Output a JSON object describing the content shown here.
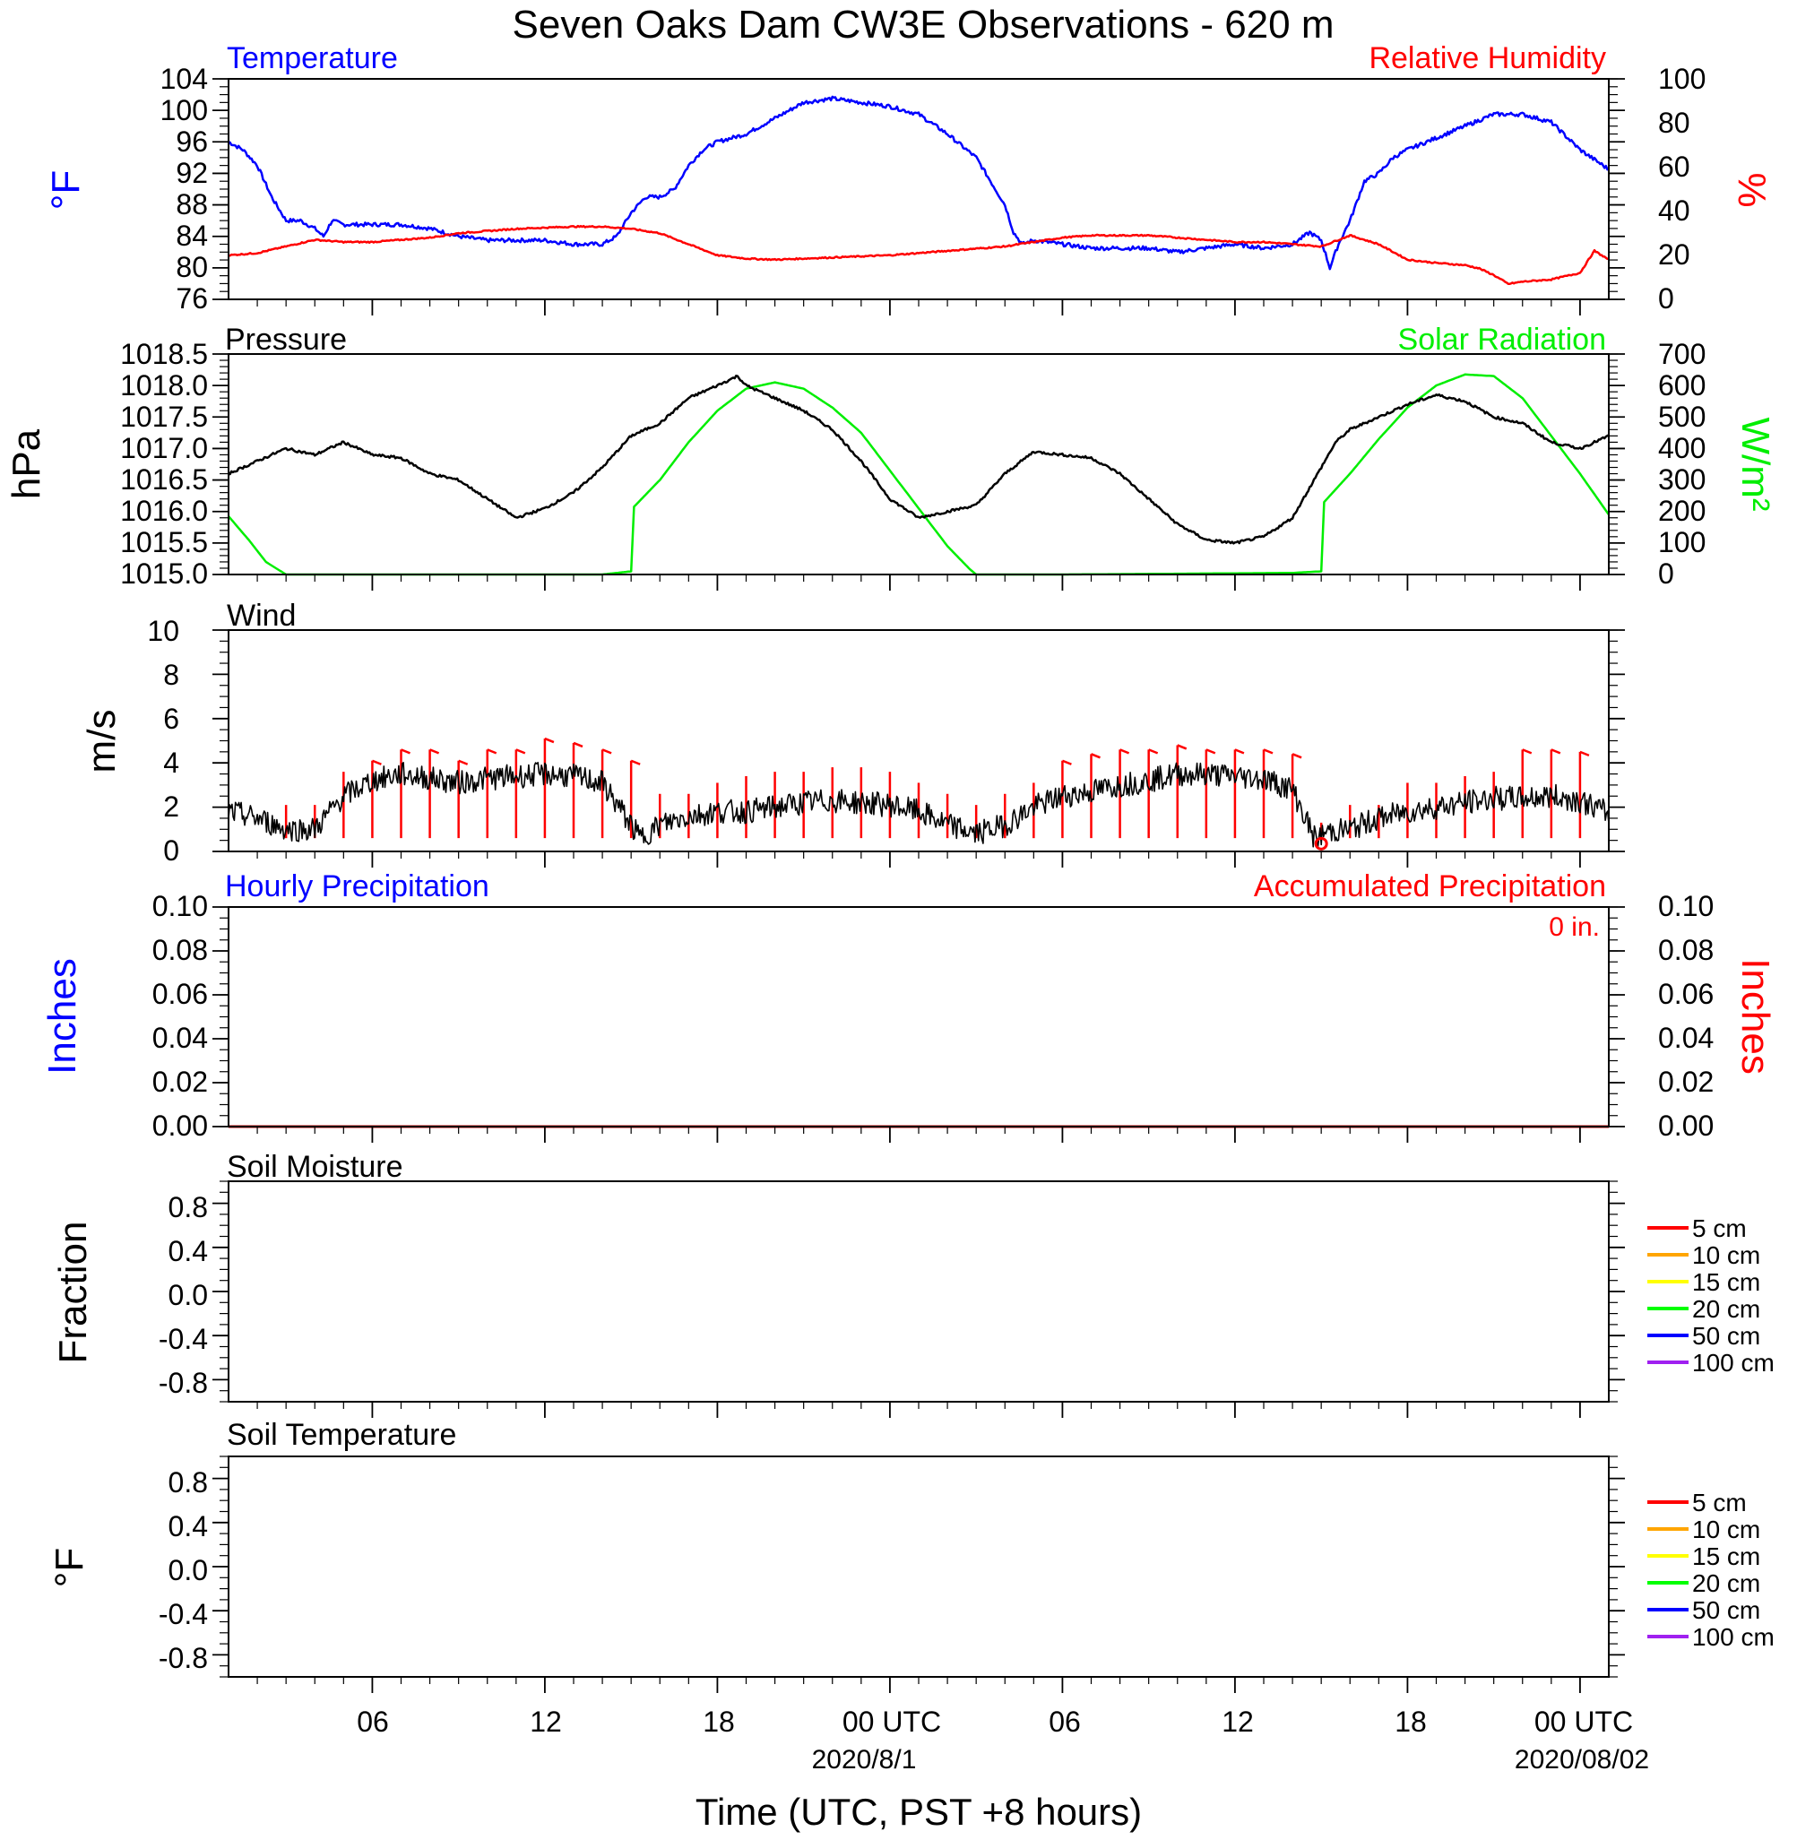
{
  "title": "Seven Oaks Dam CW3E Observations - 620 m",
  "x_axis": {
    "label": "Time (UTC, PST +8 hours)",
    "ticks": [
      {
        "hour": 6,
        "label": "06"
      },
      {
        "hour": 12,
        "label": "12"
      },
      {
        "hour": 18,
        "label": "18"
      },
      {
        "hour": 24,
        "label": "00 UTC"
      },
      {
        "hour": 30,
        "label": "06"
      },
      {
        "hour": 36,
        "label": "12"
      },
      {
        "hour": 42,
        "label": "18"
      },
      {
        "hour": 48,
        "label": "00 UTC"
      }
    ],
    "dates": [
      {
        "hour": 24,
        "label": "2020/8/1"
      },
      {
        "hour": 48,
        "label": "2020/08/02"
      }
    ]
  },
  "panels": {
    "temp_rh": {
      "left_title": "Temperature",
      "right_title": "Relative Humidity",
      "left_unit": "°F",
      "right_unit": "%",
      "left_ticks": [
        "104",
        "100",
        "96",
        "92",
        "88",
        "84",
        "80",
        "76"
      ],
      "right_ticks": [
        "100",
        "80",
        "60",
        "40",
        "20",
        "0"
      ]
    },
    "pressure_solar": {
      "left_title": "Pressure",
      "right_title": "Solar Radiation",
      "left_unit": "hPa",
      "right_unit": "W/m²",
      "left_ticks": [
        "1018.5",
        "1018.0",
        "1017.5",
        "1017.0",
        "1016.5",
        "1016.0",
        "1015.5",
        "1015.0"
      ],
      "right_ticks": [
        "700",
        "600",
        "500",
        "400",
        "300",
        "200",
        "100",
        "0"
      ]
    },
    "wind": {
      "left_title": "Wind",
      "left_unit": "m/s",
      "left_ticks": [
        "10",
        "8",
        "6",
        "4",
        "2",
        "0"
      ]
    },
    "precip": {
      "left_title": "Hourly Precipitation",
      "right_title": "Accumulated Precipitation",
      "accum_label": "0 in.",
      "left_unit": "Inches",
      "right_unit": "Inches",
      "left_ticks": [
        "0.10",
        "0.08",
        "0.06",
        "0.04",
        "0.02",
        "0.00"
      ],
      "right_ticks": [
        "0.10",
        "0.08",
        "0.06",
        "0.04",
        "0.02",
        "0.00"
      ]
    },
    "soil_moisture": {
      "left_title": "Soil Moisture",
      "left_unit": "Fraction",
      "left_ticks": [
        "0.8",
        "0.4",
        "0.0",
        "-0.4",
        "-0.8"
      ],
      "legend": [
        "5 cm",
        "10 cm",
        "15 cm",
        "20 cm",
        "50 cm",
        "100 cm"
      ]
    },
    "soil_temp": {
      "left_title": "Soil Temperature",
      "left_unit": "°F",
      "left_ticks": [
        "0.8",
        "0.4",
        "0.0",
        "-0.4",
        "-0.8"
      ],
      "legend": [
        "5 cm",
        "10 cm",
        "15 cm",
        "20 cm",
        "50 cm",
        "100 cm"
      ]
    }
  },
  "colors": {
    "temperature": "#0000ff",
    "humidity": "#ff0000",
    "pressure": "#000000",
    "solar": "#00ee00",
    "wind": "#000000",
    "wind_barb": "#ff0000",
    "precip_hourly": "#0000ff",
    "precip_accum": "#cc0000",
    "soil_legend": [
      "#ff0000",
      "#ffa500",
      "#ffff00",
      "#00ff00",
      "#0000ff",
      "#a020f0"
    ]
  },
  "chart_data": [
    {
      "type": "line",
      "panel": "temp_rh",
      "x_unit": "hours since 2020-07-31 00 UTC",
      "xlim": [
        1,
        49
      ],
      "series": [
        {
          "name": "Temperature",
          "axis": "left",
          "ylim": [
            76,
            104
          ],
          "x": [
            1,
            1.5,
            2,
            2.5,
            3,
            3.5,
            4,
            4.3,
            4.6,
            5,
            5.5,
            6,
            7,
            8,
            9,
            10,
            11,
            12,
            13,
            14,
            14.5,
            15,
            15.5,
            16,
            16.5,
            17,
            17.5,
            18,
            19,
            20,
            21,
            22,
            23,
            24,
            25,
            26,
            27,
            27.5,
            28,
            28.3,
            28.6,
            29,
            30,
            31,
            32,
            33,
            34,
            35,
            36,
            37,
            38,
            38.6,
            39,
            39.3,
            39.6,
            40,
            40.5,
            41,
            41.5,
            42,
            43,
            44,
            45,
            46,
            47,
            48,
            49
          ],
          "values": [
            96,
            95,
            93,
            89,
            86,
            86,
            85,
            84,
            86,
            85.5,
            85.5,
            85.5,
            85.5,
            85,
            84,
            83.5,
            83.5,
            83.5,
            83,
            83,
            84,
            87,
            89,
            89,
            90,
            93,
            95,
            96,
            97,
            99,
            101,
            101.5,
            101,
            100.5,
            99.5,
            97,
            94,
            91,
            88,
            84.5,
            83,
            83.5,
            83,
            82.5,
            82.5,
            82.5,
            82,
            82.5,
            83,
            82.5,
            83,
            84.5,
            83.5,
            80,
            83,
            86,
            91,
            92,
            94,
            95,
            96.5,
            98,
            99.5,
            99.5,
            98.5,
            95,
            92.5
          ]
        },
        {
          "name": "Relative Humidity",
          "axis": "right",
          "ylim": [
            0,
            100
          ],
          "x": [
            1,
            2,
            3,
            4,
            5,
            6,
            7,
            8,
            9,
            10,
            11,
            12,
            13,
            14,
            15,
            16,
            17,
            18,
            19,
            20,
            21,
            22,
            23,
            24,
            25,
            26,
            27,
            28,
            29,
            30,
            31,
            32,
            33,
            34,
            35,
            36,
            37,
            38,
            39,
            40,
            41,
            42,
            43,
            44,
            44.5,
            45,
            45.5,
            46,
            47,
            48,
            48.5,
            49
          ],
          "values": [
            20,
            21,
            24,
            27,
            26,
            26,
            27,
            28,
            30,
            31,
            32,
            32.5,
            33,
            33,
            32,
            30,
            25,
            20,
            18.5,
            18,
            18.5,
            19,
            19.5,
            20,
            21,
            22,
            23,
            24,
            26,
            28,
            29,
            29,
            29,
            28,
            27,
            26,
            26,
            25,
            24,
            29,
            25,
            18,
            16.5,
            15.5,
            14,
            11,
            7,
            8,
            9,
            12,
            22,
            18
          ]
        }
      ]
    },
    {
      "type": "line",
      "panel": "pressure_solar",
      "x_unit": "hours since 2020-07-31 00 UTC",
      "xlim": [
        1,
        49
      ],
      "series": [
        {
          "name": "Pressure",
          "axis": "left",
          "ylim": [
            1015.0,
            1018.5
          ],
          "x": [
            1,
            2,
            3,
            4,
            5,
            6,
            7,
            8,
            9,
            10,
            11,
            12,
            13,
            14,
            15,
            15.5,
            16,
            17,
            18,
            18.7,
            19,
            20,
            21,
            22,
            23,
            24,
            25,
            26,
            27,
            28,
            29,
            30,
            31,
            32,
            33,
            34,
            35,
            36,
            37,
            38,
            39,
            39.5,
            40,
            41,
            42,
            43,
            44,
            45,
            46,
            47,
            48,
            49
          ],
          "values": [
            1016.6,
            1016.8,
            1017.0,
            1016.9,
            1017.1,
            1016.9,
            1016.85,
            1016.6,
            1016.5,
            1016.2,
            1015.9,
            1016.05,
            1016.3,
            1016.7,
            1017.2,
            1017.3,
            1017.4,
            1017.8,
            1018.0,
            1018.15,
            1018.0,
            1017.8,
            1017.6,
            1017.3,
            1016.8,
            1016.2,
            1015.9,
            1016.0,
            1016.1,
            1016.6,
            1016.95,
            1016.9,
            1016.85,
            1016.6,
            1016.2,
            1015.8,
            1015.55,
            1015.5,
            1015.6,
            1015.9,
            1016.7,
            1017.1,
            1017.3,
            1017.5,
            1017.7,
            1017.85,
            1017.75,
            1017.5,
            1017.4,
            1017.1,
            1017.0,
            1017.2
          ]
        },
        {
          "name": "Solar Radiation",
          "axis": "right",
          "ylim": [
            0,
            700
          ],
          "x": [
            1,
            1.7,
            2.3,
            3,
            10,
            14,
            15,
            15.1,
            16,
            17,
            18,
            19,
            20,
            21,
            22,
            23,
            24,
            25,
            26,
            26.8,
            27,
            30,
            38,
            39,
            39.1,
            40,
            41,
            42,
            43,
            44,
            45,
            46,
            47,
            48,
            49
          ],
          "values": [
            185,
            110,
            40,
            0,
            0,
            0,
            10,
            215,
            300,
            420,
            520,
            590,
            610,
            590,
            530,
            450,
            330,
            210,
            90,
            15,
            0,
            0,
            5,
            10,
            230,
            320,
            430,
            530,
            600,
            635,
            630,
            560,
            440,
            320,
            190
          ]
        }
      ]
    },
    {
      "type": "line",
      "panel": "wind",
      "x_unit": "hours since 2020-07-31 00 UTC",
      "xlim": [
        1,
        49
      ],
      "ylim": [
        0,
        10
      ],
      "series": [
        {
          "name": "Wind",
          "x": [
            1,
            2,
            3,
            4,
            5,
            6,
            7,
            8,
            9,
            10,
            11,
            12,
            13,
            14,
            15,
            15.3,
            16,
            17,
            18,
            19,
            20,
            21,
            22,
            23,
            24,
            25,
            26,
            27,
            28,
            29,
            30,
            31,
            32,
            33,
            34,
            35,
            36,
            37,
            38,
            38.8,
            39.2,
            40,
            41,
            42,
            43,
            44,
            45,
            46,
            47,
            48,
            49
          ],
          "values": [
            1.8,
            1.5,
            1.0,
            1.0,
            2.5,
            3.2,
            3.5,
            3.3,
            3.1,
            3.3,
            3.4,
            3.5,
            3.4,
            3.1,
            1.2,
            0.6,
            1.2,
            1.6,
            1.8,
            1.8,
            2.0,
            2.2,
            2.3,
            2.2,
            2.1,
            1.8,
            1.2,
            0.8,
            1.2,
            2.0,
            2.5,
            2.7,
            3.0,
            3.2,
            3.5,
            3.5,
            3.4,
            3.3,
            2.8,
            0.5,
            0.9,
            1.0,
            1.5,
            1.8,
            2.0,
            2.2,
            2.4,
            2.4,
            2.5,
            2.3,
            1.7
          ]
        }
      ],
      "barbs": {
        "x": [
          3,
          4,
          5,
          6,
          7,
          8,
          9,
          10,
          11,
          12,
          13,
          14,
          15,
          16,
          17,
          18,
          19,
          20,
          21,
          22,
          23,
          24,
          25,
          26,
          27,
          28,
          29,
          30,
          31,
          32,
          33,
          34,
          35,
          36,
          37,
          38,
          39,
          40,
          41,
          42,
          43,
          44,
          45,
          46,
          47,
          48
        ],
        "speed": [
          1.5,
          1.5,
          3,
          3.5,
          4,
          4,
          3.5,
          4,
          4,
          4.5,
          4.3,
          4,
          3.5,
          2,
          2,
          2.5,
          2.8,
          3,
          3,
          3.2,
          3.2,
          3,
          2.5,
          2,
          1.5,
          2,
          2.5,
          3.5,
          3.8,
          4,
          4,
          4.2,
          4,
          4,
          4,
          3.8,
          0.3,
          1.5,
          1.5,
          2.5,
          2.5,
          2.8,
          3,
          4,
          4,
          3.9
        ]
      },
      "calm_marker_hour": 39
    },
    {
      "type": "line",
      "panel": "precip",
      "x_unit": "hours since 2020-07-31 00 UTC",
      "xlim": [
        1,
        49
      ],
      "ylim": [
        0,
        0.1
      ],
      "series": [
        {
          "name": "Hourly Precipitation",
          "x": [
            1,
            49
          ],
          "values": [
            0,
            0
          ]
        },
        {
          "name": "Accumulated Precipitation",
          "x": [
            1,
            49
          ],
          "values": [
            0,
            0
          ]
        }
      ]
    },
    {
      "type": "line",
      "panel": "soil_moisture",
      "ylim": [
        -1,
        1
      ],
      "series": [
        {
          "name": "5 cm",
          "values": []
        },
        {
          "name": "10 cm",
          "values": []
        },
        {
          "name": "15 cm",
          "values": []
        },
        {
          "name": "20 cm",
          "values": []
        },
        {
          "name": "50 cm",
          "values": []
        },
        {
          "name": "100 cm",
          "values": []
        }
      ]
    },
    {
      "type": "line",
      "panel": "soil_temp",
      "ylim": [
        -1,
        1
      ],
      "series": [
        {
          "name": "5 cm",
          "values": []
        },
        {
          "name": "10 cm",
          "values": []
        },
        {
          "name": "15 cm",
          "values": []
        },
        {
          "name": "20 cm",
          "values": []
        },
        {
          "name": "50 cm",
          "values": []
        },
        {
          "name": "100 cm",
          "values": []
        }
      ]
    }
  ]
}
